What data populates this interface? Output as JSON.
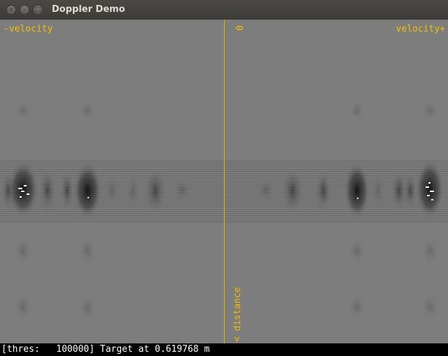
{
  "window": {
    "title": "Doppler Demo",
    "buttons": {
      "close": "×",
      "minimize": "–",
      "maximize": "□"
    }
  },
  "plot": {
    "left_label": "-velocity",
    "right_label": "velocity+",
    "center_label": "0",
    "axis_label": "< distance",
    "colors": {
      "background": "#7d7d7d",
      "label": "#f0c000",
      "center_line": "#e0b800",
      "echo_dark": "#1a1a1a",
      "detection": "#ffffff"
    }
  },
  "status": {
    "text": "[thres:   100000] Target at 0.619768 m"
  }
}
